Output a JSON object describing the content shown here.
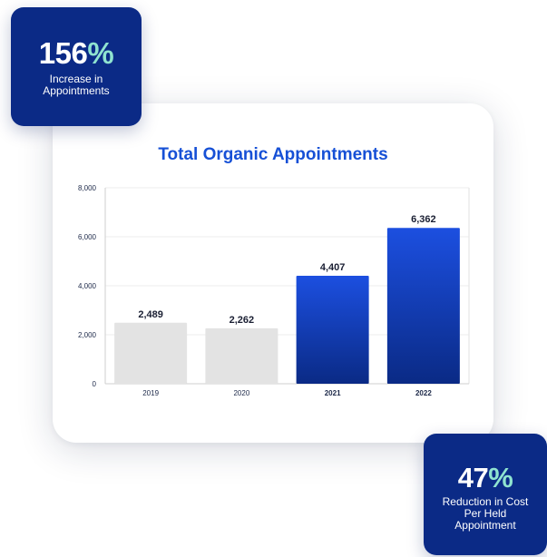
{
  "stats": {
    "top": {
      "value": "156",
      "unit": "%",
      "label": "Increase in Appointments"
    },
    "bottom": {
      "value": "47",
      "unit": "%",
      "label": "Reduction in Cost Per Held Appointment"
    }
  },
  "chart_data": {
    "type": "bar",
    "title": "Total Organic Appointments",
    "xlabel": "",
    "ylabel": "",
    "categories": [
      "2019",
      "2020",
      "2021",
      "2022"
    ],
    "values": [
      2489,
      2262,
      4407,
      6362
    ],
    "value_labels": [
      "2,489",
      "2,262",
      "4,407",
      "6,362"
    ],
    "highlight": [
      false,
      false,
      true,
      true
    ],
    "ylim": [
      0,
      8000
    ],
    "yticks": [
      0,
      2000,
      4000,
      6000,
      8000
    ],
    "ytick_labels": [
      "0",
      "2,000",
      "4,000",
      "6,000",
      "8,000"
    ],
    "grid": true,
    "colors": {
      "muted": "#e3e3e3",
      "accent_top": "#1c4fe0",
      "accent_bottom": "#0a2a85",
      "title": "#1650d6",
      "tick": "#1e2a4a"
    }
  }
}
